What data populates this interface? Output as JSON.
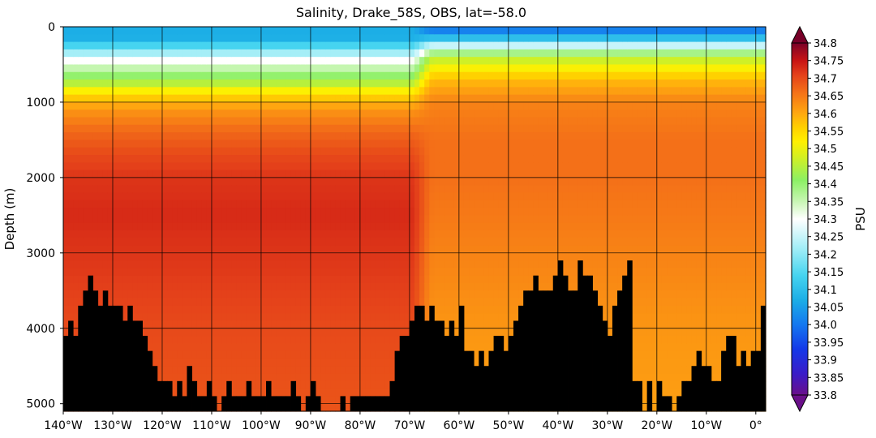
{
  "chart_data": {
    "type": "heatmap",
    "title": "Salinity, Drake_58S, OBS, lat=-58.0",
    "ylabel": "Depth (m)",
    "colorbar_label": "PSU",
    "x_range": [
      -140,
      2
    ],
    "y_range": [
      0,
      5100
    ],
    "y_inverted": true,
    "grid": true,
    "x_ticks": [
      {
        "value": -140,
        "label": "140°W"
      },
      {
        "value": -130,
        "label": "130°W"
      },
      {
        "value": -120,
        "label": "120°W"
      },
      {
        "value": -110,
        "label": "110°W"
      },
      {
        "value": -100,
        "label": "100°W"
      },
      {
        "value": -90,
        "label": "90°W"
      },
      {
        "value": -80,
        "label": "80°W"
      },
      {
        "value": -70,
        "label": "70°W"
      },
      {
        "value": -60,
        "label": "60°W"
      },
      {
        "value": -50,
        "label": "50°W"
      },
      {
        "value": -40,
        "label": "40°W"
      },
      {
        "value": -30,
        "label": "30°W"
      },
      {
        "value": -20,
        "label": "20°W"
      },
      {
        "value": -10,
        "label": "10°W"
      },
      {
        "value": 0,
        "label": "0°"
      }
    ],
    "y_ticks": [
      {
        "value": 0,
        "label": "0"
      },
      {
        "value": 1000,
        "label": "1000"
      },
      {
        "value": 2000,
        "label": "2000"
      },
      {
        "value": 3000,
        "label": "3000"
      },
      {
        "value": 4000,
        "label": "4000"
      },
      {
        "value": 5000,
        "label": "5000"
      }
    ],
    "colorbar": {
      "min": 33.8,
      "max": 34.8,
      "extend": "both",
      "tick_labels": [
        "33.8",
        "33.85",
        "33.9",
        "33.95",
        "34.0",
        "34.05",
        "34.1",
        "34.15",
        "34.2",
        "34.25",
        "34.3",
        "34.35",
        "34.4",
        "34.45",
        "34.5",
        "34.55",
        "34.6",
        "34.65",
        "34.7",
        "34.75",
        "34.8"
      ]
    },
    "colormap": [
      [
        0.0,
        "#6a0f8a"
      ],
      [
        0.06,
        "#3a1cc8"
      ],
      [
        0.13,
        "#1438e8"
      ],
      [
        0.2,
        "#1478f0"
      ],
      [
        0.27,
        "#1caee6"
      ],
      [
        0.34,
        "#46d4f0"
      ],
      [
        0.41,
        "#9aecf6"
      ],
      [
        0.5,
        "#ffffff"
      ],
      [
        0.55,
        "#c8f6b4"
      ],
      [
        0.61,
        "#8cf064"
      ],
      [
        0.68,
        "#d8f01e"
      ],
      [
        0.72,
        "#fff000"
      ],
      [
        0.76,
        "#ffd000"
      ],
      [
        0.8,
        "#ffa810"
      ],
      [
        0.86,
        "#f47018"
      ],
      [
        0.91,
        "#e4401a"
      ],
      [
        0.95,
        "#c81414"
      ],
      [
        0.98,
        "#9a0a20"
      ],
      [
        1.0,
        "#780028"
      ]
    ],
    "series": [
      {
        "region": "west_of_drake",
        "x_range": [
          -140,
          -70
        ],
        "profile_depth": [
          0,
          100,
          250,
          450,
          600,
          750,
          900,
          1100,
          1400,
          1700,
          2000,
          2500,
          3000,
          3500,
          4000,
          5000
        ],
        "profile_salinity": [
          34.1,
          34.04,
          34.14,
          34.3,
          34.38,
          34.45,
          34.55,
          34.62,
          34.67,
          34.7,
          34.72,
          34.73,
          34.72,
          34.71,
          34.7,
          34.69
        ]
      },
      {
        "region": "east_of_drake",
        "x_range": [
          -65,
          2
        ],
        "profile_depth": [
          0,
          60,
          150,
          250,
          400,
          700,
          1000,
          1500,
          2000,
          2500,
          3000,
          4000,
          5000
        ],
        "profile_salinity": [
          33.98,
          34.02,
          34.1,
          34.25,
          34.45,
          34.58,
          34.64,
          34.66,
          34.66,
          34.65,
          34.64,
          34.62,
          34.61
        ]
      }
    ],
    "bathymetry": {
      "x": [
        -140,
        -139,
        -138,
        -137,
        -136,
        -135,
        -134,
        -133,
        -132,
        -131,
        -130,
        -129,
        -128,
        -127,
        -126,
        -125,
        -124,
        -123,
        -122,
        -121,
        -120,
        -119,
        -118,
        -117,
        -116,
        -115,
        -114,
        -113,
        -112,
        -111,
        -110,
        -109,
        -108,
        -107,
        -106,
        -105,
        -104,
        -103,
        -102,
        -101,
        -100,
        -99,
        -98,
        -97,
        -96,
        -95,
        -94,
        -93,
        -92,
        -91,
        -90,
        -89,
        -88,
        -87,
        -86,
        -85,
        -84,
        -83,
        -82,
        -81,
        -80,
        -79,
        -78,
        -77,
        -76,
        -75,
        -74,
        -73,
        -72,
        -71,
        -70,
        -69,
        -68,
        -67,
        -66,
        -65,
        -64,
        -63,
        -62,
        -61,
        -60,
        -59,
        -58,
        -57,
        -56,
        -55,
        -54,
        -53,
        -52,
        -51,
        -50,
        -49,
        -48,
        -47,
        -46,
        -45,
        -44,
        -43,
        -42,
        -41,
        -40,
        -39,
        -38,
        -37,
        -36,
        -35,
        -34,
        -33,
        -32,
        -31,
        -30,
        -29,
        -28,
        -27,
        -26,
        -25,
        -24,
        -23,
        -22,
        -21,
        -20,
        -19,
        -18,
        -17,
        -16,
        -15,
        -14,
        -13,
        -12,
        -11,
        -10,
        -9,
        -8,
        -7,
        -6,
        -5,
        -4,
        -3,
        -2,
        -1,
        0,
        1,
        2
      ],
      "depth": [
        4100,
        3900,
        4100,
        3700,
        3500,
        3300,
        3500,
        3700,
        3500,
        3700,
        3700,
        3700,
        3900,
        3700,
        3900,
        3900,
        4100,
        4300,
        4500,
        4700,
        4700,
        4700,
        4900,
        4700,
        4900,
        4500,
        4700,
        4900,
        4900,
        4700,
        4900,
        5100,
        4900,
        4700,
        4900,
        4900,
        4900,
        4700,
        4900,
        4900,
        4900,
        4700,
        4900,
        4900,
        4900,
        4900,
        4700,
        4900,
        5100,
        4900,
        4700,
        4900,
        5100,
        5100,
        5100,
        5100,
        4900,
        5100,
        4900,
        4900,
        4900,
        4900,
        4900,
        4900,
        4900,
        4900,
        4700,
        4300,
        4100,
        4100,
        3900,
        3700,
        3700,
        3900,
        3700,
        3900,
        3900,
        4100,
        3900,
        4100,
        3700,
        4300,
        4300,
        4500,
        4300,
        4500,
        4300,
        4100,
        4100,
        4300,
        4100,
        3900,
        3700,
        3500,
        3500,
        3300,
        3500,
        3500,
        3500,
        3300,
        3100,
        3300,
        3500,
        3500,
        3100,
        3300,
        3300,
        3500,
        3700,
        3900,
        4100,
        3700,
        3500,
        3300,
        3100,
        4700,
        4700,
        5100,
        4700,
        5100,
        4700,
        4900,
        4900,
        5100,
        4900,
        4700,
        4700,
        4500,
        4300,
        4500,
        4500,
        4700,
        4700,
        4300,
        4100,
        4100,
        4500,
        4300,
        4500,
        4300,
        4300,
        3700,
        3900
      ]
    }
  }
}
